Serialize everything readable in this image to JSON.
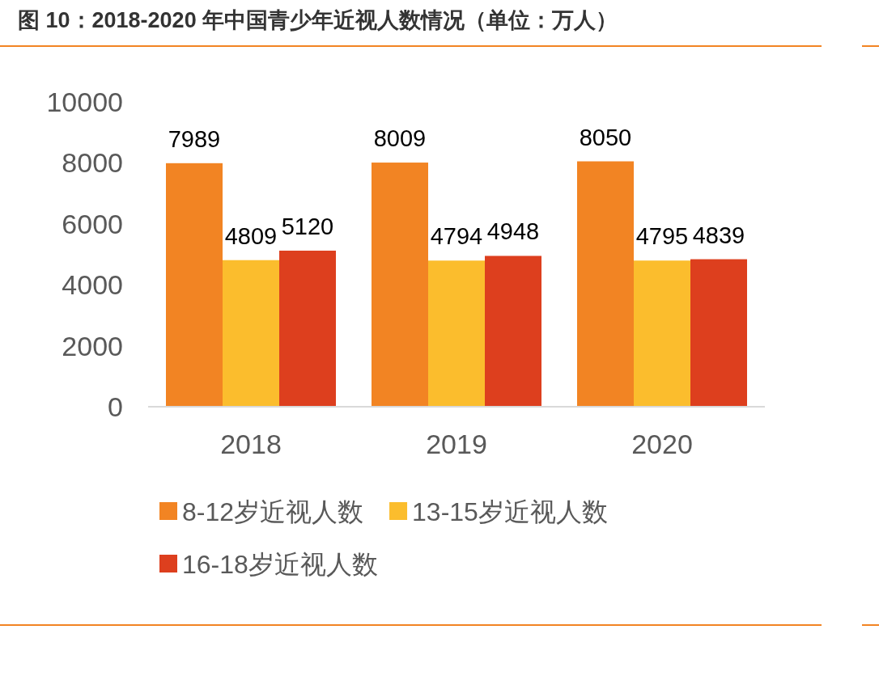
{
  "chart_data": {
    "type": "bar",
    "title": "图 10：2018-2020 年中国青少年近视人数情况（单位：万人）",
    "categories": [
      "2018",
      "2019",
      "2020"
    ],
    "series": [
      {
        "name": "8-12岁近视人数",
        "color": "#f28423",
        "values": [
          7989,
          8009,
          8050
        ]
      },
      {
        "name": "13-15岁近视人数",
        "color": "#fbbd2d",
        "values": [
          4809,
          4794,
          4795
        ]
      },
      {
        "name": "16-18岁近视人数",
        "color": "#dd3f1e",
        "values": [
          5120,
          4948,
          4839
        ]
      }
    ],
    "ylim": [
      0,
      10000
    ],
    "yticks": [
      0,
      2000,
      4000,
      6000,
      8000,
      10000
    ],
    "data_labels": true,
    "legend": "bottom"
  }
}
